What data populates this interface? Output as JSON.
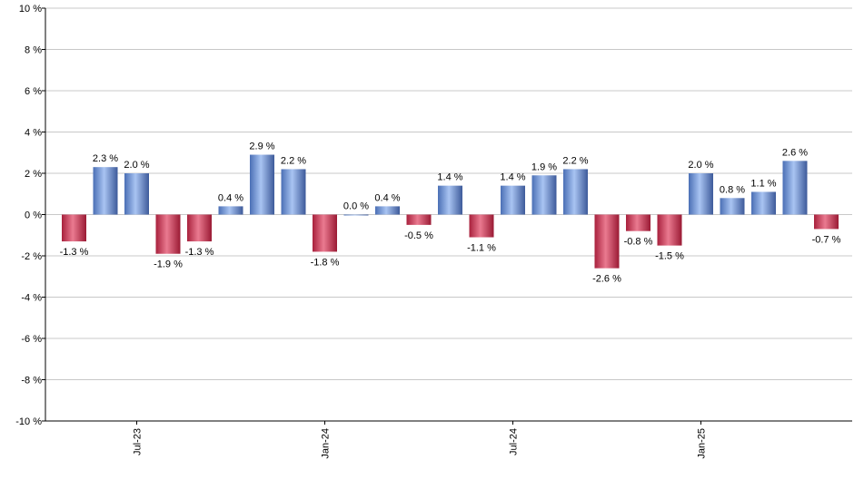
{
  "chart_data": {
    "type": "bar",
    "title": "",
    "xlabel": "",
    "ylabel": "",
    "ylim": [
      -10,
      10
    ],
    "y_ticks": [
      10,
      8,
      6,
      4,
      2,
      0,
      -2,
      -4,
      -6,
      -8,
      -10
    ],
    "y_tick_labels": [
      "10 %",
      "8 %",
      "6 %",
      "4 %",
      "2 %",
      "0 %",
      "-2 %",
      "-4 %",
      "-6 %",
      "-8 %",
      "-10 %"
    ],
    "grid": "horizontal",
    "x_tick_labels": [
      {
        "label": "Jul-23",
        "index": 2
      },
      {
        "label": "Jan-24",
        "index": 8
      },
      {
        "label": "Jul-24",
        "index": 14
      },
      {
        "label": "Jan-25",
        "index": 20
      }
    ],
    "values": [
      -1.3,
      2.3,
      2.0,
      -1.9,
      -1.3,
      0.4,
      2.9,
      2.2,
      -1.8,
      0.0,
      0.4,
      -0.5,
      1.4,
      -1.1,
      1.4,
      1.9,
      2.2,
      -2.6,
      -0.8,
      -1.5,
      2.0,
      0.8,
      1.1,
      2.6,
      -0.7
    ],
    "labels": [
      "-1.3 %",
      "2.3 %",
      "2.0 %",
      "-1.9 %",
      "-1.3 %",
      "0.4 %",
      "2.9 %",
      "2.2 %",
      "-1.8 %",
      "0.0 %",
      "0.4 %",
      "-0.5 %",
      "1.4 %",
      "-1.1 %",
      "1.4 %",
      "1.9 %",
      "2.2 %",
      "-2.6 %",
      "-0.8 %",
      "-1.5 %",
      "2.0 %",
      "0.8 %",
      "1.1 %",
      "2.6 %",
      "-0.7 %"
    ],
    "colors": {
      "positive": "#5b84c8",
      "negative": "#c8304f"
    }
  }
}
